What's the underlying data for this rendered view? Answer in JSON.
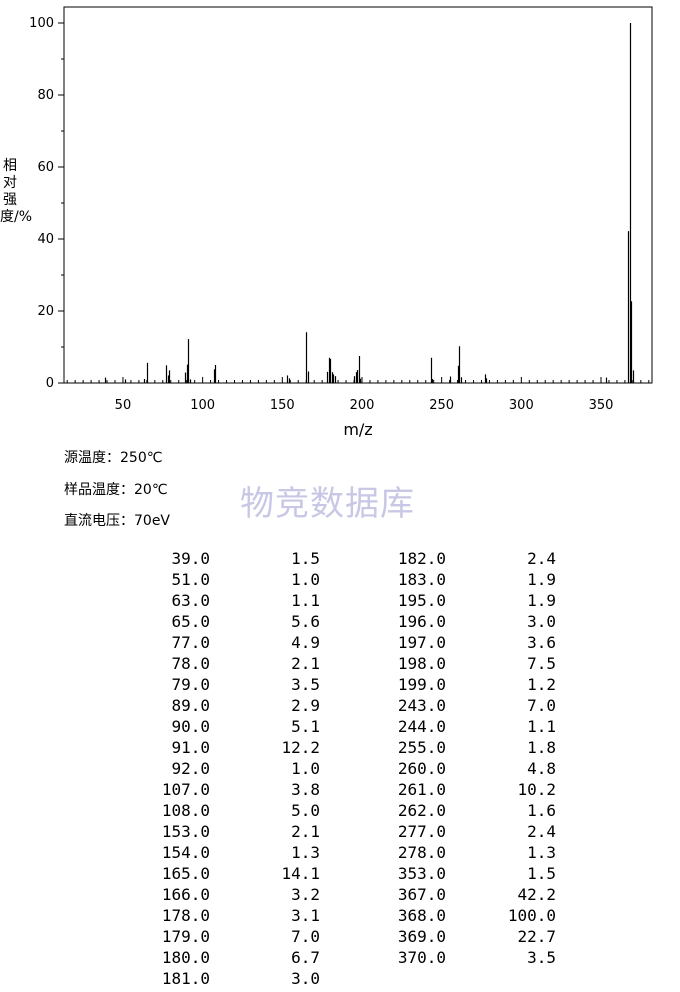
{
  "chart_data": {
    "type": "bar",
    "x_axis_label": "m/z",
    "y_axis_label": "相对强度/%",
    "x_ticks": [
      50,
      100,
      150,
      200,
      250,
      300,
      350
    ],
    "y_ticks": [
      0,
      20,
      40,
      60,
      80,
      100
    ],
    "xlim": [
      13,
      382
    ],
    "ylim": [
      0,
      100
    ],
    "grid": false,
    "peaks": [
      {
        "mz": 39.0,
        "intensity": 1.5
      },
      {
        "mz": 51.0,
        "intensity": 1.0
      },
      {
        "mz": 63.0,
        "intensity": 1.1
      },
      {
        "mz": 65.0,
        "intensity": 5.6
      },
      {
        "mz": 77.0,
        "intensity": 4.9
      },
      {
        "mz": 78.0,
        "intensity": 2.1
      },
      {
        "mz": 79.0,
        "intensity": 3.5
      },
      {
        "mz": 89.0,
        "intensity": 2.9
      },
      {
        "mz": 90.0,
        "intensity": 5.1
      },
      {
        "mz": 91.0,
        "intensity": 12.2
      },
      {
        "mz": 92.0,
        "intensity": 1.0
      },
      {
        "mz": 107.0,
        "intensity": 3.8
      },
      {
        "mz": 108.0,
        "intensity": 5.0
      },
      {
        "mz": 153.0,
        "intensity": 2.1
      },
      {
        "mz": 154.0,
        "intensity": 1.3
      },
      {
        "mz": 165.0,
        "intensity": 14.1
      },
      {
        "mz": 166.0,
        "intensity": 3.2
      },
      {
        "mz": 178.0,
        "intensity": 3.1
      },
      {
        "mz": 179.0,
        "intensity": 7.0
      },
      {
        "mz": 180.0,
        "intensity": 6.7
      },
      {
        "mz": 181.0,
        "intensity": 3.0
      },
      {
        "mz": 182.0,
        "intensity": 2.4
      },
      {
        "mz": 183.0,
        "intensity": 1.9
      },
      {
        "mz": 195.0,
        "intensity": 1.9
      },
      {
        "mz": 196.0,
        "intensity": 3.0
      },
      {
        "mz": 197.0,
        "intensity": 3.6
      },
      {
        "mz": 198.0,
        "intensity": 7.5
      },
      {
        "mz": 199.0,
        "intensity": 1.2
      },
      {
        "mz": 243.0,
        "intensity": 7.0
      },
      {
        "mz": 244.0,
        "intensity": 1.1
      },
      {
        "mz": 255.0,
        "intensity": 1.8
      },
      {
        "mz": 260.0,
        "intensity": 4.8
      },
      {
        "mz": 261.0,
        "intensity": 10.2
      },
      {
        "mz": 262.0,
        "intensity": 1.6
      },
      {
        "mz": 277.0,
        "intensity": 2.4
      },
      {
        "mz": 278.0,
        "intensity": 1.3
      },
      {
        "mz": 353.0,
        "intensity": 1.5
      },
      {
        "mz": 367.0,
        "intensity": 42.2
      },
      {
        "mz": 368.0,
        "intensity": 100.0
      },
      {
        "mz": 369.0,
        "intensity": 22.7
      },
      {
        "mz": 370.0,
        "intensity": 3.5
      }
    ]
  },
  "conditions": {
    "source_temp": "源温度：250℃",
    "sample_temp": "样品温度：20℃",
    "voltage": "直流电压：70eV"
  },
  "watermark": "物竞数据库",
  "peak_table": {
    "left": [
      [
        "39.0",
        "1.5"
      ],
      [
        "51.0",
        "1.0"
      ],
      [
        "63.0",
        "1.1"
      ],
      [
        "65.0",
        "5.6"
      ],
      [
        "77.0",
        "4.9"
      ],
      [
        "78.0",
        "2.1"
      ],
      [
        "79.0",
        "3.5"
      ],
      [
        "89.0",
        "2.9"
      ],
      [
        "90.0",
        "5.1"
      ],
      [
        "91.0",
        "12.2"
      ],
      [
        "92.0",
        "1.0"
      ],
      [
        "107.0",
        "3.8"
      ],
      [
        "108.0",
        "5.0"
      ],
      [
        "153.0",
        "2.1"
      ],
      [
        "154.0",
        "1.3"
      ],
      [
        "165.0",
        "14.1"
      ],
      [
        "166.0",
        "3.2"
      ],
      [
        "178.0",
        "3.1"
      ],
      [
        "179.0",
        "7.0"
      ],
      [
        "180.0",
        "6.7"
      ],
      [
        "181.0",
        "3.0"
      ]
    ],
    "right": [
      [
        "182.0",
        "2.4"
      ],
      [
        "183.0",
        "1.9"
      ],
      [
        "195.0",
        "1.9"
      ],
      [
        "196.0",
        "3.0"
      ],
      [
        "197.0",
        "3.6"
      ],
      [
        "198.0",
        "7.5"
      ],
      [
        "199.0",
        "1.2"
      ],
      [
        "243.0",
        "7.0"
      ],
      [
        "244.0",
        "1.1"
      ],
      [
        "255.0",
        "1.8"
      ],
      [
        "260.0",
        "4.8"
      ],
      [
        "261.0",
        "10.2"
      ],
      [
        "262.0",
        "1.6"
      ],
      [
        "277.0",
        "2.4"
      ],
      [
        "278.0",
        "1.3"
      ],
      [
        "353.0",
        "1.5"
      ],
      [
        "367.0",
        "42.2"
      ],
      [
        "368.0",
        "100.0"
      ],
      [
        "369.0",
        "22.7"
      ],
      [
        "370.0",
        "3.5"
      ]
    ]
  }
}
